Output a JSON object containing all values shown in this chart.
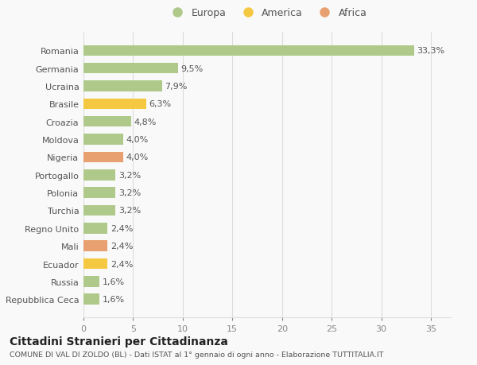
{
  "categories": [
    "Repubblica Ceca",
    "Russia",
    "Ecuador",
    "Mali",
    "Regno Unito",
    "Turchia",
    "Polonia",
    "Portogallo",
    "Nigeria",
    "Moldova",
    "Croazia",
    "Brasile",
    "Ucraina",
    "Germania",
    "Romania"
  ],
  "values": [
    1.6,
    1.6,
    2.4,
    2.4,
    2.4,
    3.2,
    3.2,
    3.2,
    4.0,
    4.0,
    4.8,
    6.3,
    7.9,
    9.5,
    33.3
  ],
  "labels": [
    "1,6%",
    "1,6%",
    "2,4%",
    "2,4%",
    "2,4%",
    "3,2%",
    "3,2%",
    "3,2%",
    "4,0%",
    "4,0%",
    "4,8%",
    "6,3%",
    "7,9%",
    "9,5%",
    "33,3%"
  ],
  "colors": [
    "#aec98a",
    "#aec98a",
    "#f5c842",
    "#e8a070",
    "#aec98a",
    "#aec98a",
    "#aec98a",
    "#aec98a",
    "#e8a070",
    "#aec98a",
    "#aec98a",
    "#f5c842",
    "#aec98a",
    "#aec98a",
    "#aec98a"
  ],
  "legend": [
    {
      "label": "Europa",
      "color": "#aec98a"
    },
    {
      "label": "America",
      "color": "#f5c842"
    },
    {
      "label": "Africa",
      "color": "#e8a070"
    }
  ],
  "xlim": [
    0,
    37
  ],
  "xticks": [
    0,
    5,
    10,
    15,
    20,
    25,
    30,
    35
  ],
  "title": "Cittadini Stranieri per Cittadinanza",
  "subtitle": "COMUNE DI VAL DI ZOLDO (BL) - Dati ISTAT al 1° gennaio di ogni anno - Elaborazione TUTTITALIA.IT",
  "background_color": "#f9f9f9",
  "grid_color": "#dddddd"
}
